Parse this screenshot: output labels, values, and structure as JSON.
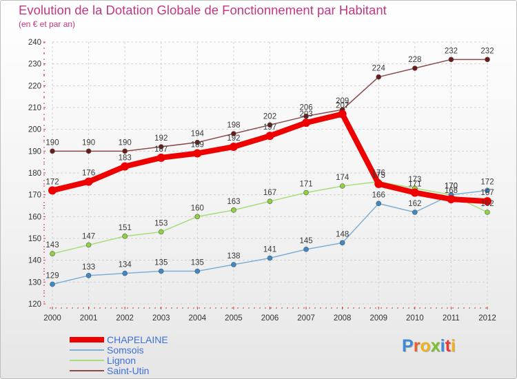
{
  "title": "Evolution de la Dotation Globale de Fonctionnement par Habitant",
  "subtitle": "(en € et par an)",
  "logo": {
    "text": "Proxiti",
    "letter_colors": [
      "#3d8ad8",
      "#e8602c",
      "#f0b21c",
      "#7cbf2f",
      "#3d8ad8",
      "#e83a3a",
      "#f0b21c"
    ]
  },
  "chart_data": {
    "type": "line",
    "title": "Evolution de la Dotation Globale de Fonctionnement par Habitant",
    "subtitle": "(en € et par an)",
    "xlabel": "",
    "ylabel": "",
    "x": [
      "2000",
      "2001",
      "2002",
      "2003",
      "2004",
      "2005",
      "2006",
      "2007",
      "2008",
      "2009",
      "2010",
      "2011",
      "2012"
    ],
    "ylim": [
      120,
      240
    ],
    "yticks": [
      120,
      130,
      140,
      150,
      160,
      170,
      180,
      190,
      200,
      210,
      220,
      230,
      240
    ],
    "legend_position": "bottom-left",
    "series": [
      {
        "name": "Saint-Utin",
        "color": "#8b4a4a",
        "marker": "#6b1a1a",
        "width": 1.5,
        "values": [
          190,
          190,
          190,
          192,
          194,
          198,
          202,
          206,
          209,
          224,
          228,
          232,
          232
        ]
      },
      {
        "name": "Lignon",
        "color": "#a9dc7a",
        "marker": "#8fd13f",
        "width": 1.5,
        "values": [
          143,
          147,
          151,
          153,
          160,
          163,
          167,
          171,
          174,
          176,
          173,
          170,
          162
        ]
      },
      {
        "name": "Somsois",
        "color": "#7eaed6",
        "marker": "#3d88c9",
        "width": 1.5,
        "values": [
          129,
          133,
          134,
          135,
          135,
          138,
          141,
          145,
          148,
          166,
          162,
          170,
          172
        ]
      },
      {
        "name": "CHAPELAINE",
        "color": "#ee0000",
        "marker": "#ee0000",
        "width": 8,
        "values": [
          172,
          176,
          183,
          187,
          189,
          192,
          197,
          203,
          207,
          175,
          171,
          168,
          167
        ]
      }
    ],
    "legend_order": [
      "CHAPELAINE",
      "Somsois",
      "Lignon",
      "Saint-Utin"
    ]
  }
}
